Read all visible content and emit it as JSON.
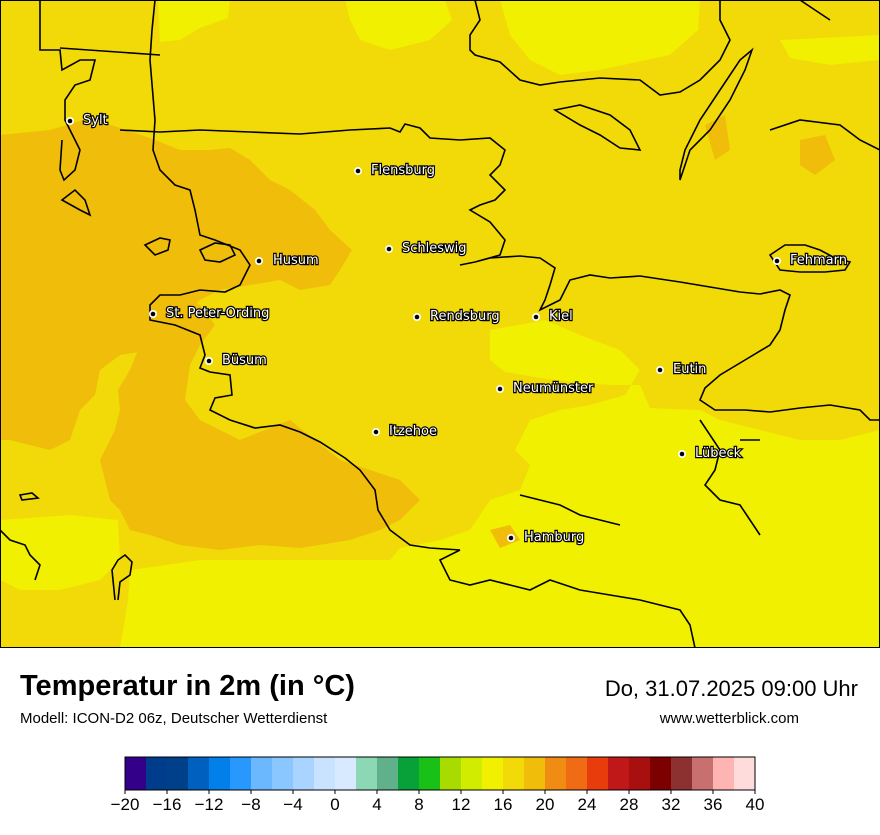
{
  "map": {
    "cities": [
      {
        "name": "Sylt"
      },
      {
        "name": "Flensburg"
      },
      {
        "name": "Schleswig"
      },
      {
        "name": "Husum"
      },
      {
        "name": "Fehmarn"
      },
      {
        "name": "St. Peter-Ording"
      },
      {
        "name": "Rendsburg"
      },
      {
        "name": "Kiel"
      },
      {
        "name": "Büsum"
      },
      {
        "name": "Eutin"
      },
      {
        "name": "Neumünster"
      },
      {
        "name": "Itzehoe"
      },
      {
        "name": "Lübeck"
      },
      {
        "name": "Hamburg"
      }
    ],
    "colors": {
      "temp_16_18": "#f0f000",
      "temp_18_20": "#f2d908",
      "temp_20_22": "#f0bd0a"
    }
  },
  "title": "Temperatur in 2m (in °C)",
  "subtitle": "Modell: ICON-D2 06z, Deutscher Wetterdienst",
  "datetime": "Do, 31.07.2025 09:00 Uhr",
  "website": "www.wetterblick.com",
  "legend": {
    "colors": [
      "#33008a",
      "#003c8c",
      "#00408a",
      "#0060c0",
      "#0080e8",
      "#2898ff",
      "#6cb8ff",
      "#8ac6ff",
      "#a8d4ff",
      "#c8e2ff",
      "#d8eaff",
      "#8cd8b4",
      "#60b08c",
      "#08a038",
      "#18c018",
      "#a8dc00",
      "#d2ec00",
      "#f0f000",
      "#f2d908",
      "#f0bd0a",
      "#f08c14",
      "#f06c14",
      "#e83c0c",
      "#c01818",
      "#a81010",
      "#7c0000",
      "#8c3030",
      "#c87070",
      "#ffb4b4",
      "#ffdcdc"
    ],
    "ticks": [
      "−20",
      "−16",
      "−12",
      "−8",
      "−4",
      "0",
      "4",
      "8",
      "12",
      "16",
      "20",
      "24",
      "28",
      "32",
      "36",
      "40"
    ]
  }
}
